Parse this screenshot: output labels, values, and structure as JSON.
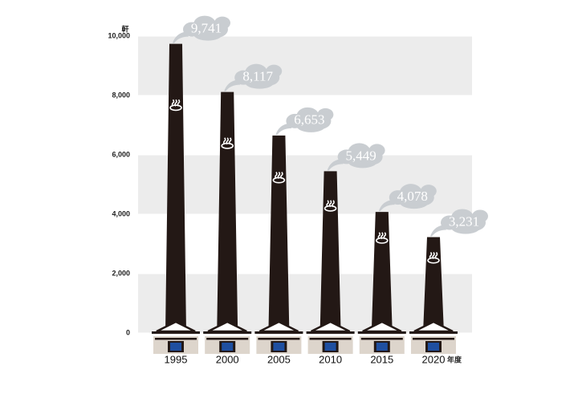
{
  "chart_data": {
    "type": "chimney-bar",
    "y_unit": "軒",
    "x_unit": "年度",
    "categories": [
      "1995",
      "2000",
      "2005",
      "2010",
      "2015",
      "2020"
    ],
    "values": [
      9741,
      8117,
      6653,
      5449,
      4078,
      3231
    ],
    "value_labels": [
      "9,741",
      "8,117",
      "6,653",
      "5,449",
      "4,078",
      "3,231"
    ],
    "color": "#231815",
    "ylim": [
      0,
      10000
    ],
    "yticks": [
      0,
      {
        "value": 2000,
        "label": "2,000"
      },
      {
        "value": 4000,
        "label": "4,000"
      },
      {
        "value": 6000,
        "label": "6,000"
      },
      {
        "value": 8000,
        "label": "8,000"
      },
      {
        "value": 10000,
        "label": "10,000"
      }
    ],
    "grid": true
  }
}
